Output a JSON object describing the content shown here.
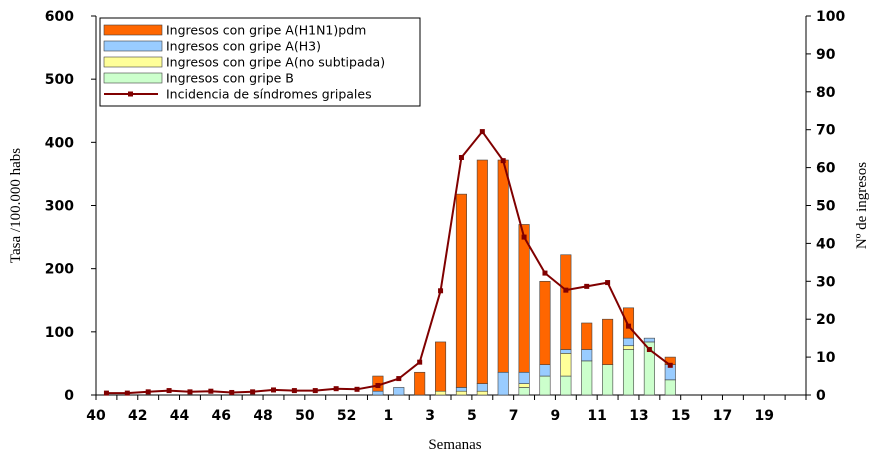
{
  "chart_data": {
    "type": "bar",
    "xlabel": "Semanas",
    "ylabel": "Tasa /100.000 habs",
    "y2label": "Nº de ingresos",
    "ylim": [
      0,
      600
    ],
    "y2lim": [
      0,
      100
    ],
    "yticks": [
      "0",
      "100",
      "200",
      "300",
      "400",
      "500",
      "600"
    ],
    "y2ticks": [
      "0",
      "10",
      "20",
      "30",
      "40",
      "50",
      "60",
      "70",
      "80",
      "90",
      "100"
    ],
    "grid": false,
    "legend_position": "top-left",
    "categories": [
      "40",
      "41",
      "42",
      "43",
      "44",
      "45",
      "46",
      "47",
      "48",
      "49",
      "50",
      "51",
      "52",
      "53",
      "1",
      "2",
      "3",
      "4",
      "5",
      "6",
      "7",
      "8",
      "9",
      "10",
      "11",
      "12",
      "13",
      "14",
      "15",
      "16",
      "17",
      "18",
      "19",
      "20"
    ],
    "xtick_labels": [
      "40",
      "42",
      "44",
      "46",
      "48",
      "50",
      "52",
      "1",
      "3",
      "5",
      "7",
      "9",
      "11",
      "13",
      "15",
      "17",
      "19"
    ],
    "colors": {
      "h1n1": "#ff6600",
      "h3": "#99ccff",
      "a_nosub": "#ffff99",
      "b": "#ccffcc",
      "incidence": "#800000",
      "bar_stroke": "#404040"
    },
    "series": [
      {
        "name": "Ingresos con gripe B",
        "key": "b",
        "axis": "right",
        "values": [
          0,
          0,
          0,
          0,
          0,
          0,
          0,
          0,
          0,
          0,
          0,
          0,
          0,
          0,
          0,
          0,
          0,
          0,
          0,
          0,
          2,
          5,
          5,
          9,
          8,
          12,
          14,
          4,
          0,
          0,
          0,
          0,
          0,
          0
        ]
      },
      {
        "name": "Ingresos con gripe A(no subtipada)",
        "key": "a_nosub",
        "axis": "right",
        "values": [
          0,
          0,
          0,
          0,
          0,
          0,
          0,
          0,
          0,
          0,
          0,
          0,
          0,
          0,
          0,
          0,
          1,
          1,
          1,
          0,
          1,
          0,
          6,
          0,
          0,
          1,
          0,
          0,
          0,
          0,
          0,
          0,
          0,
          0
        ]
      },
      {
        "name": "Ingresos con gripe A(H3)",
        "key": "h3",
        "axis": "right",
        "values": [
          0,
          0,
          0,
          0,
          0,
          0,
          0,
          0,
          0,
          0,
          0,
          0,
          0,
          1,
          2,
          0,
          0,
          1,
          2,
          6,
          3,
          3,
          1,
          3,
          0,
          2,
          1,
          4,
          0,
          0,
          0,
          0,
          0,
          0
        ]
      },
      {
        "name": "Ingresos con gripe A(H1N1)pdm",
        "key": "h1n1",
        "axis": "right",
        "values": [
          0,
          0,
          0,
          0,
          0,
          0,
          0,
          0,
          0,
          0,
          0,
          0,
          0,
          4,
          0,
          6,
          13,
          51,
          59,
          56,
          39,
          22,
          25,
          7,
          12,
          8,
          0,
          2,
          0,
          0,
          0,
          0,
          0,
          0
        ]
      },
      {
        "name": "Incidencia de síndromes gripales",
        "key": "incidence",
        "axis": "left",
        "type": "line",
        "values": [
          3,
          3,
          5,
          7,
          5,
          6,
          4,
          5,
          8,
          7,
          7,
          10,
          9,
          15,
          26,
          52,
          165,
          376,
          417,
          371,
          250,
          193,
          166,
          172,
          178,
          109,
          72,
          47,
          null,
          null,
          null,
          null,
          null,
          null
        ]
      }
    ],
    "legend_order": [
      "h1n1",
      "h3",
      "a_nosub",
      "b",
      "incidence"
    ]
  }
}
